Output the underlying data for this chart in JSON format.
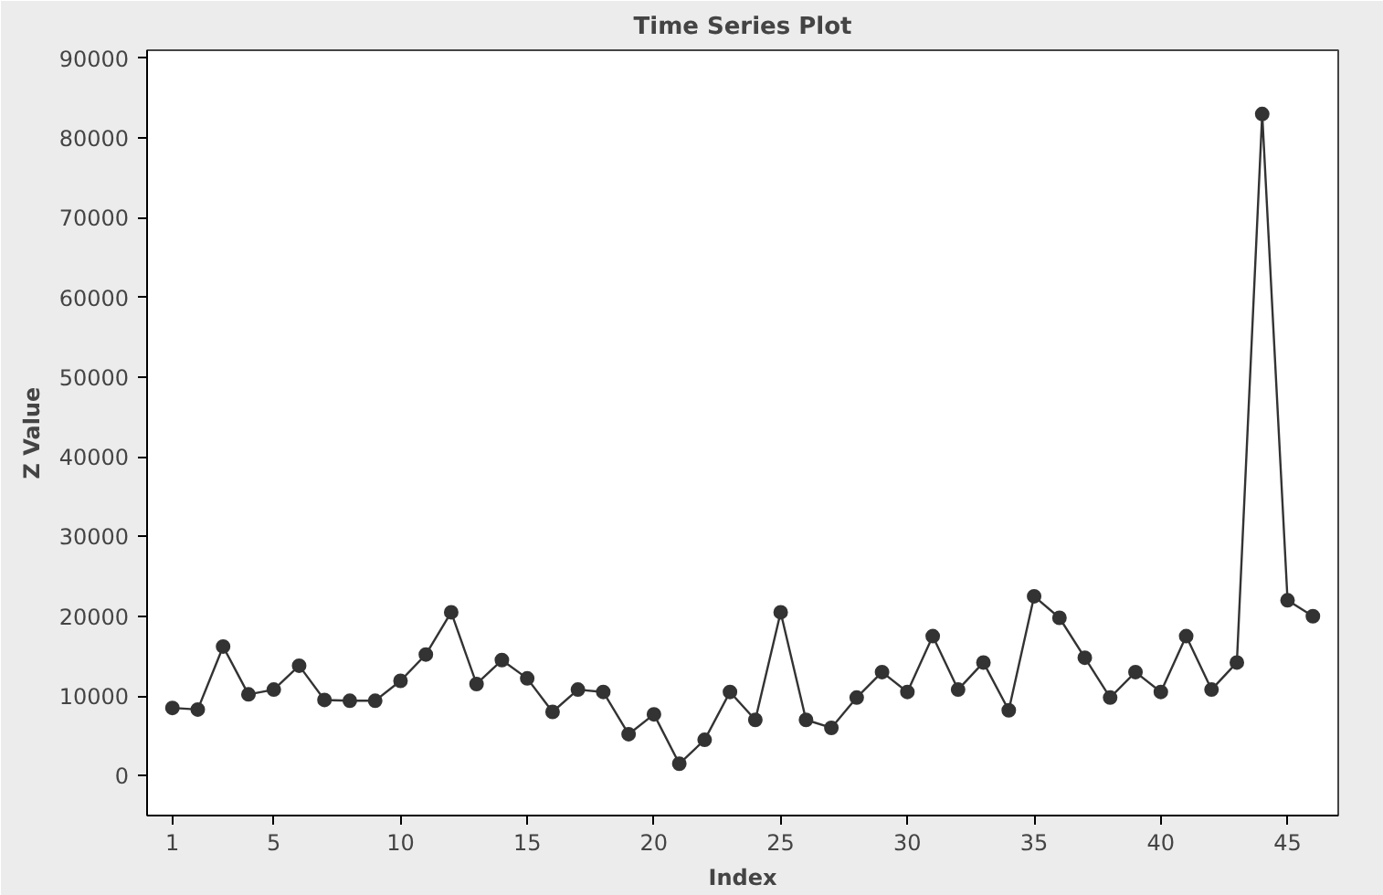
{
  "chart_data": {
    "type": "line",
    "title": "Time Series Plot",
    "xlabel": "Index",
    "ylabel": "Z Value",
    "x": [
      1,
      2,
      3,
      4,
      5,
      6,
      7,
      8,
      9,
      10,
      11,
      12,
      13,
      14,
      15,
      16,
      17,
      18,
      19,
      20,
      21,
      22,
      23,
      24,
      25,
      26,
      27,
      28,
      29,
      30,
      31,
      32,
      33,
      34,
      35,
      36,
      37,
      38,
      39,
      40,
      41,
      42,
      43,
      44,
      45,
      46
    ],
    "series": [
      {
        "color": "#333333",
        "values": [
          8500,
          8300,
          16200,
          10200,
          10800,
          13800,
          9500,
          9400,
          9400,
          11900,
          15200,
          20500,
          11500,
          14500,
          12200,
          8000,
          10800,
          10500,
          5200,
          7700,
          1500,
          4500,
          10500,
          7000,
          20500,
          7000,
          6000,
          9800,
          13000,
          10500,
          17500,
          10800,
          14200,
          8200,
          22500,
          19800,
          14800,
          9800,
          13000,
          10500,
          17500,
          10800,
          14200,
          83000,
          22000,
          20000
        ]
      }
    ],
    "xlim": [
      0,
      47
    ],
    "xticks": [
      1,
      5,
      10,
      15,
      20,
      25,
      30,
      35,
      40,
      45
    ],
    "ylim": [
      -5000,
      91000
    ],
    "yticks": [
      0,
      10000,
      20000,
      30000,
      40000,
      50000,
      60000,
      70000,
      80000,
      90000
    ],
    "grid": false,
    "marker": "circle",
    "line_style": "solid"
  }
}
